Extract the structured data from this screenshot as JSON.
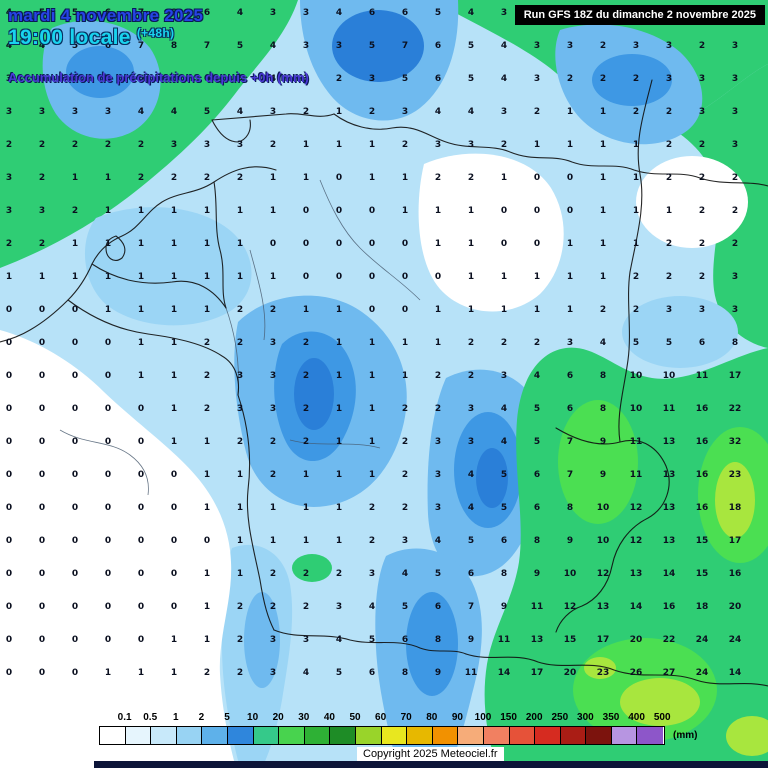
{
  "header": {
    "date": "mardi 4 novembre 2025",
    "time": "19:00 locale",
    "offset": "(+48h)",
    "subtitle": "Accumulation de précipitations depuis +0h (mm)"
  },
  "run_info": {
    "label": "Run GFS 18Z du dimanche 2 novembre 2025"
  },
  "copyright": {
    "label": "Copyright 2025 Meteociel.fr"
  },
  "legend": {
    "unit": "(mm)",
    "values": [
      "0.1",
      "0.5",
      "1",
      "2",
      "5",
      "10",
      "20",
      "30",
      "40",
      "50",
      "60",
      "70",
      "80",
      "90",
      "100",
      "150",
      "200",
      "250",
      "300",
      "350",
      "400",
      "500"
    ],
    "colors": [
      "#ffffff",
      "#e6f5fd",
      "#c8e9fa",
      "#98d3f3",
      "#5eb1ea",
      "#2f86dc",
      "#35c98a",
      "#48d34e",
      "#2eb135",
      "#1e8c26",
      "#99d42a",
      "#e8e71f",
      "#e7b800",
      "#f29100",
      "#f6ac79",
      "#f18061",
      "#e65239",
      "#d62b20",
      "#aa1d15",
      "#7c130d",
      "#b795e1",
      "#8d56c9"
    ]
  },
  "map": {
    "colors": {
      "base": "#b7e2f8",
      "white": "#ffffff",
      "blue_light": "#9bd5f5",
      "blue_med": "#6fbaef",
      "blue_deep": "#3e98e4",
      "blue_deeper": "#2a7fd8",
      "green": "#2fcd74",
      "green_bright": "#4bdf52",
      "green_yellow": "#a8e63e"
    },
    "grid": {
      "values": [
        [
          4,
          5,
          5,
          6,
          7,
          8,
          6,
          4,
          3,
          3,
          4,
          6,
          6,
          5,
          4,
          3,
          3,
          2,
          3,
          3,
          2,
          3,
          3
        ],
        [
          4,
          4,
          5,
          6,
          7,
          8,
          7,
          5,
          4,
          3,
          3,
          5,
          7,
          6,
          5,
          4,
          3,
          3,
          2,
          3,
          3,
          2,
          3
        ],
        [
          3,
          4,
          4,
          5,
          6,
          6,
          6,
          5,
          4,
          3,
          2,
          3,
          5,
          6,
          5,
          4,
          3,
          2,
          2,
          2,
          3,
          3,
          3
        ],
        [
          3,
          3,
          3,
          3,
          4,
          4,
          5,
          4,
          3,
          2,
          1,
          2,
          3,
          4,
          4,
          3,
          2,
          1,
          1,
          2,
          2,
          3,
          3
        ],
        [
          2,
          2,
          2,
          2,
          2,
          3,
          3,
          3,
          2,
          1,
          1,
          1,
          2,
          3,
          3,
          2,
          1,
          1,
          1,
          1,
          2,
          2,
          3
        ],
        [
          3,
          2,
          1,
          1,
          2,
          2,
          2,
          2,
          1,
          1,
          0,
          1,
          1,
          2,
          2,
          1,
          0,
          0,
          1,
          1,
          2,
          2,
          2
        ],
        [
          3,
          3,
          2,
          1,
          1,
          1,
          1,
          1,
          1,
          0,
          0,
          0,
          1,
          1,
          1,
          0,
          0,
          0,
          1,
          1,
          1,
          2,
          2
        ],
        [
          2,
          2,
          1,
          1,
          1,
          1,
          1,
          1,
          0,
          0,
          0,
          0,
          0,
          1,
          1,
          0,
          0,
          1,
          1,
          1,
          2,
          2,
          2
        ],
        [
          1,
          1,
          1,
          1,
          1,
          1,
          1,
          1,
          1,
          0,
          0,
          0,
          0,
          0,
          1,
          1,
          1,
          1,
          1,
          2,
          2,
          2,
          3
        ],
        [
          0,
          0,
          0,
          1,
          1,
          1,
          1,
          2,
          2,
          1,
          1,
          0,
          0,
          1,
          1,
          1,
          1,
          1,
          2,
          2,
          3,
          3,
          3
        ],
        [
          0,
          0,
          0,
          0,
          1,
          1,
          2,
          2,
          3,
          2,
          1,
          1,
          1,
          1,
          2,
          2,
          2,
          3,
          4,
          5,
          5,
          6,
          8
        ],
        [
          0,
          0,
          0,
          0,
          1,
          1,
          2,
          3,
          3,
          2,
          1,
          1,
          1,
          2,
          2,
          3,
          4,
          6,
          8,
          10,
          10,
          11,
          17
        ],
        [
          0,
          0,
          0,
          0,
          0,
          1,
          2,
          3,
          3,
          2,
          1,
          1,
          2,
          2,
          3,
          4,
          5,
          6,
          8,
          10,
          11,
          16,
          22
        ],
        [
          0,
          0,
          0,
          0,
          0,
          1,
          1,
          2,
          2,
          2,
          1,
          1,
          2,
          3,
          3,
          4,
          5,
          7,
          9,
          11,
          13,
          16,
          32
        ],
        [
          0,
          0,
          0,
          0,
          0,
          0,
          1,
          1,
          2,
          1,
          1,
          1,
          2,
          3,
          4,
          5,
          6,
          7,
          9,
          11,
          13,
          16,
          23
        ],
        [
          0,
          0,
          0,
          0,
          0,
          0,
          1,
          1,
          1,
          1,
          1,
          2,
          2,
          3,
          4,
          5,
          6,
          8,
          10,
          12,
          13,
          16,
          18
        ],
        [
          0,
          0,
          0,
          0,
          0,
          0,
          0,
          1,
          1,
          1,
          1,
          2,
          3,
          4,
          5,
          6,
          8,
          9,
          10,
          12,
          13,
          15,
          17
        ],
        [
          0,
          0,
          0,
          0,
          0,
          0,
          1,
          1,
          2,
          2,
          2,
          3,
          4,
          5,
          6,
          8,
          9,
          10,
          12,
          13,
          14,
          15,
          16
        ],
        [
          0,
          0,
          0,
          0,
          0,
          0,
          1,
          2,
          2,
          2,
          3,
          4,
          5,
          6,
          7,
          9,
          11,
          12,
          13,
          14,
          16,
          18,
          20
        ],
        [
          0,
          0,
          0,
          0,
          0,
          1,
          1,
          2,
          3,
          3,
          4,
          5,
          6,
          8,
          9,
          11,
          13,
          15,
          17,
          20,
          22,
          24,
          24
        ],
        [
          0,
          0,
          0,
          1,
          1,
          1,
          2,
          2,
          3,
          4,
          5,
          6,
          8,
          9,
          11,
          14,
          17,
          20,
          23,
          26,
          27,
          24,
          14
        ]
      ]
    }
  }
}
